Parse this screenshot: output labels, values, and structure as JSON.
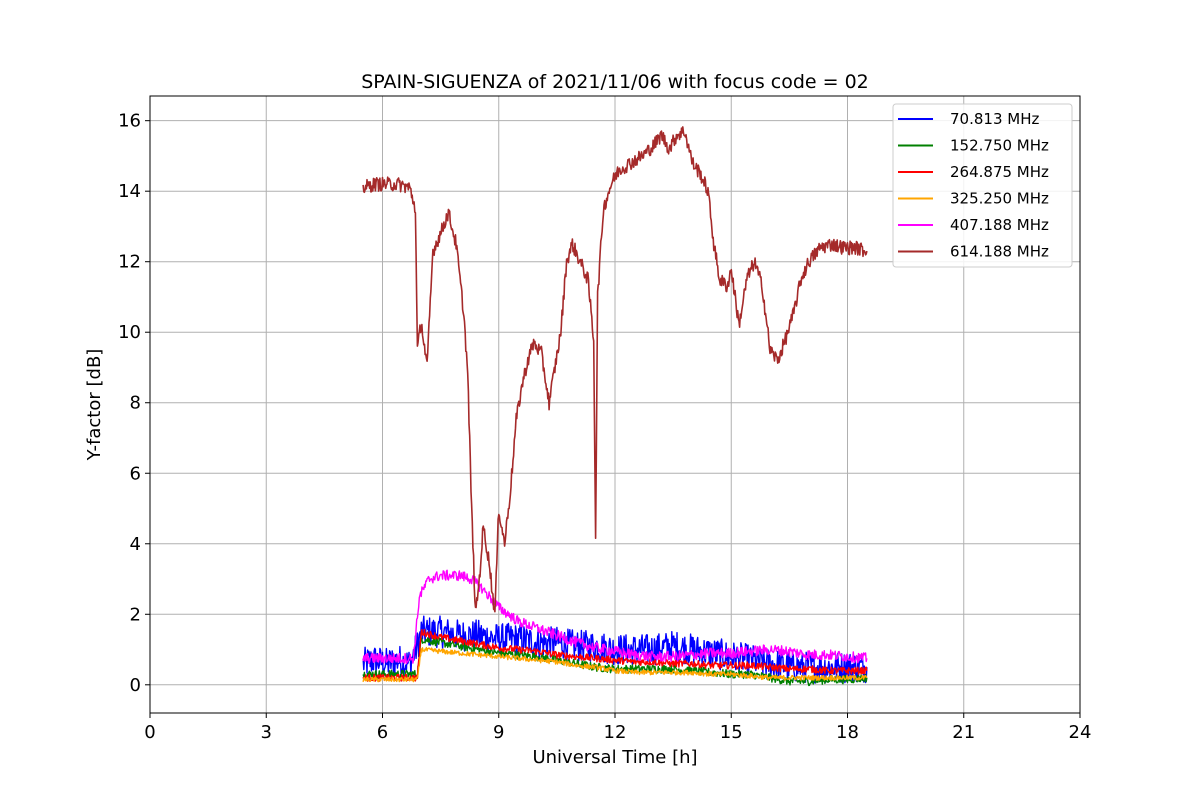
{
  "chart_data": {
    "type": "line",
    "title": "SPAIN-SIGUENZA of 2021/11/06 with focus code = 02",
    "xlabel": "Universal Time [h]",
    "ylabel": "Y-factor [dB]",
    "xlim": [
      0,
      24
    ],
    "ylim": [
      -0.8,
      16.7
    ],
    "xticks": [
      0,
      3,
      6,
      9,
      12,
      15,
      18,
      21,
      24
    ],
    "yticks": [
      0,
      2,
      4,
      6,
      8,
      10,
      12,
      14,
      16
    ],
    "grid": true,
    "legend_position": "top-right",
    "series": [
      {
        "name": "  70.813 MHz",
        "color": "#0000ff",
        "x": [
          5.5,
          5.8,
          6.1,
          6.4,
          6.7,
          6.9,
          7.0,
          7.5,
          8.0,
          8.5,
          9.0,
          9.5,
          10.0,
          10.5,
          11.0,
          11.5,
          12.0,
          12.5,
          13.0,
          13.5,
          14.0,
          14.5,
          15.0,
          15.5,
          16.0,
          16.5,
          17.0,
          17.5,
          18.0,
          18.5
        ],
        "y": [
          0.6,
          0.7,
          0.6,
          0.7,
          0.6,
          1.1,
          1.5,
          1.5,
          1.4,
          1.4,
          1.3,
          1.3,
          1.2,
          1.2,
          1.1,
          1.1,
          1.0,
          1.0,
          1.0,
          1.1,
          1.0,
          0.9,
          0.8,
          0.7,
          0.6,
          0.5,
          0.5,
          0.5,
          0.5,
          0.5
        ],
        "noise": 0.45
      },
      {
        "name": "152.750 MHz",
        "color": "#008000",
        "x": [
          5.5,
          6.0,
          6.5,
          6.9,
          7.0,
          7.5,
          8.0,
          8.5,
          9.0,
          9.5,
          10.0,
          10.5,
          11.0,
          11.5,
          12.0,
          12.5,
          13.0,
          13.5,
          14.0,
          14.5,
          15.0,
          15.5,
          16.0,
          16.5,
          17.0,
          17.5,
          18.0,
          18.5
        ],
        "y": [
          0.3,
          0.3,
          0.3,
          0.3,
          1.3,
          1.2,
          1.1,
          1.0,
          0.9,
          0.85,
          0.8,
          0.7,
          0.6,
          0.5,
          0.45,
          0.45,
          0.45,
          0.45,
          0.4,
          0.35,
          0.3,
          0.3,
          0.2,
          0.1,
          0.1,
          0.15,
          0.15,
          0.2
        ],
        "noise": 0.12
      },
      {
        "name": "264.875 MHz",
        "color": "#ff0000",
        "x": [
          5.5,
          6.0,
          6.5,
          6.9,
          7.0,
          7.5,
          8.0,
          8.5,
          9.0,
          9.5,
          10.0,
          10.5,
          11.0,
          11.5,
          12.0,
          12.5,
          13.0,
          13.5,
          14.0,
          14.5,
          15.0,
          15.5,
          16.0,
          16.5,
          17.0,
          17.5,
          18.0,
          18.5
        ],
        "y": [
          0.2,
          0.2,
          0.2,
          0.2,
          1.5,
          1.35,
          1.25,
          1.15,
          1.05,
          1.0,
          0.95,
          0.85,
          0.8,
          0.75,
          0.7,
          0.65,
          0.65,
          0.6,
          0.6,
          0.55,
          0.55,
          0.55,
          0.5,
          0.45,
          0.45,
          0.4,
          0.4,
          0.4
        ],
        "noise": 0.1
      },
      {
        "name": "325.250 MHz",
        "color": "#ffa500",
        "x": [
          5.5,
          6.0,
          6.5,
          6.9,
          7.0,
          7.5,
          8.0,
          8.5,
          9.0,
          9.5,
          10.0,
          10.5,
          11.0,
          11.5,
          12.0,
          12.5,
          13.0,
          13.5,
          14.0,
          14.5,
          15.0,
          15.5,
          16.0,
          16.5,
          17.0,
          17.5,
          18.0,
          18.5
        ],
        "y": [
          0.15,
          0.15,
          0.15,
          0.15,
          1.0,
          0.95,
          0.9,
          0.85,
          0.8,
          0.75,
          0.7,
          0.65,
          0.55,
          0.5,
          0.4,
          0.35,
          0.35,
          0.35,
          0.35,
          0.3,
          0.3,
          0.25,
          0.2,
          0.2,
          0.2,
          0.2,
          0.2,
          0.2
        ],
        "noise": 0.07
      },
      {
        "name": "407.188 MHz",
        "color": "#ff00ff",
        "x": [
          5.5,
          6.0,
          6.5,
          6.8,
          6.95,
          7.2,
          7.5,
          8.0,
          8.3,
          8.6,
          9.0,
          9.5,
          10.0,
          10.5,
          11.0,
          11.5,
          12.0,
          12.5,
          13.0,
          13.5,
          14.0,
          14.5,
          15.0,
          15.5,
          16.0,
          16.5,
          17.0,
          17.5,
          18.0,
          18.5
        ],
        "y": [
          0.75,
          0.75,
          0.75,
          0.75,
          2.5,
          3.0,
          3.1,
          3.1,
          3.0,
          2.7,
          2.2,
          1.8,
          1.6,
          1.4,
          1.2,
          1.05,
          0.95,
          0.85,
          0.8,
          0.8,
          0.85,
          0.9,
          0.9,
          0.95,
          1.0,
          0.95,
          0.85,
          0.85,
          0.8,
          0.75
        ],
        "noise": 0.15
      },
      {
        "name": "614.188 MHz",
        "color": "#a52a2a",
        "x": [
          5.5,
          5.8,
          6.1,
          6.4,
          6.7,
          6.85,
          6.9,
          7.0,
          7.15,
          7.3,
          7.5,
          7.7,
          7.9,
          8.1,
          8.2,
          8.3,
          8.4,
          8.5,
          8.6,
          8.75,
          8.9,
          9.0,
          9.15,
          9.3,
          9.45,
          9.6,
          9.75,
          9.9,
          10.1,
          10.3,
          10.45,
          10.6,
          10.75,
          10.9,
          11.1,
          11.3,
          11.45,
          11.5,
          11.55,
          11.7,
          11.9,
          12.1,
          12.4,
          12.7,
          13.0,
          13.2,
          13.4,
          13.6,
          13.8,
          14.0,
          14.2,
          14.4,
          14.55,
          14.7,
          14.9,
          15.0,
          15.2,
          15.4,
          15.6,
          15.8,
          16.0,
          16.2,
          16.4,
          16.6,
          16.8,
          17.0,
          17.3,
          17.6,
          17.9,
          18.2,
          18.5
        ],
        "y": [
          14.1,
          14.2,
          14.2,
          14.2,
          14.1,
          13.5,
          9.5,
          10.3,
          9.0,
          12.3,
          12.8,
          13.4,
          12.5,
          10.5,
          8.8,
          5.0,
          2.0,
          3.0,
          4.5,
          3.5,
          2.0,
          5.0,
          4.0,
          5.5,
          7.5,
          8.5,
          9.2,
          9.7,
          9.4,
          8.0,
          9.0,
          10.0,
          12.0,
          12.5,
          12.0,
          11.5,
          9.8,
          4.2,
          11.0,
          13.5,
          14.2,
          14.6,
          14.8,
          15.0,
          15.3,
          15.6,
          15.2,
          15.6,
          15.7,
          14.8,
          14.5,
          14.0,
          12.5,
          11.5,
          11.3,
          11.8,
          10.2,
          11.5,
          12.0,
          11.3,
          9.5,
          9.2,
          9.8,
          10.5,
          11.5,
          12.0,
          12.4,
          12.5,
          12.4,
          12.4,
          12.3
        ],
        "noise": 0.2
      }
    ]
  }
}
